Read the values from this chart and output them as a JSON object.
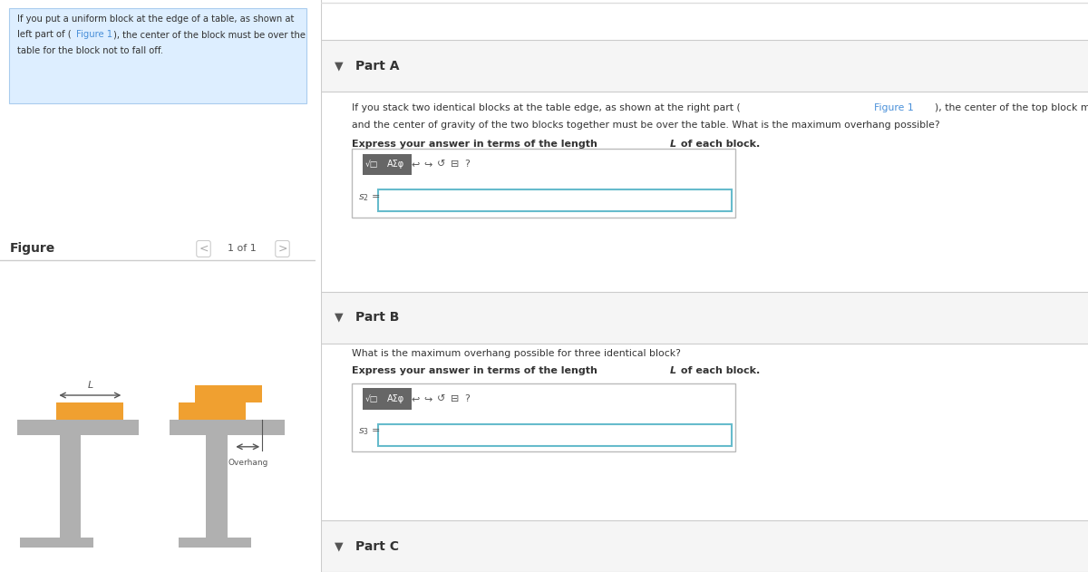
{
  "bg_color": "#ffffff",
  "left_panel_bg": "#ddeeff",
  "left_panel_text": "If you put a uniform block at the edge of a table, as shown at\nleft part of (Figure 1), the center of the block must be over the\ntable for the block not to fall off.",
  "figure_label": "Figure",
  "nav_text": "1 of 1",
  "part_a_header": "Part A",
  "part_a_text": "If you stack two identical blocks at the table edge, as shown at the right part (Figure 1), the center of the top block must be over the bottom block,\nand the center of gravity of the two blocks together must be over the table. What is the maximum overhang possible?",
  "part_a_bold": "Express your answer in terms of the length L of each block.",
  "s2_label": "s2 =",
  "part_b_header": "Part B",
  "part_b_text": "What is the maximum overhang possible for three identical block?",
  "part_b_bold": "Express your answer in terms of the length L of each block.",
  "s3_label": "s3 =",
  "part_c_header": "Part C",
  "table_color": "#b0b0b0",
  "block_color": "#f0a030",
  "block_color_dark": "#c8832a",
  "separator_color": "#cccccc",
  "text_color": "#333333",
  "link_color": "#4a90d9",
  "panel_border": "#c0d8ee"
}
